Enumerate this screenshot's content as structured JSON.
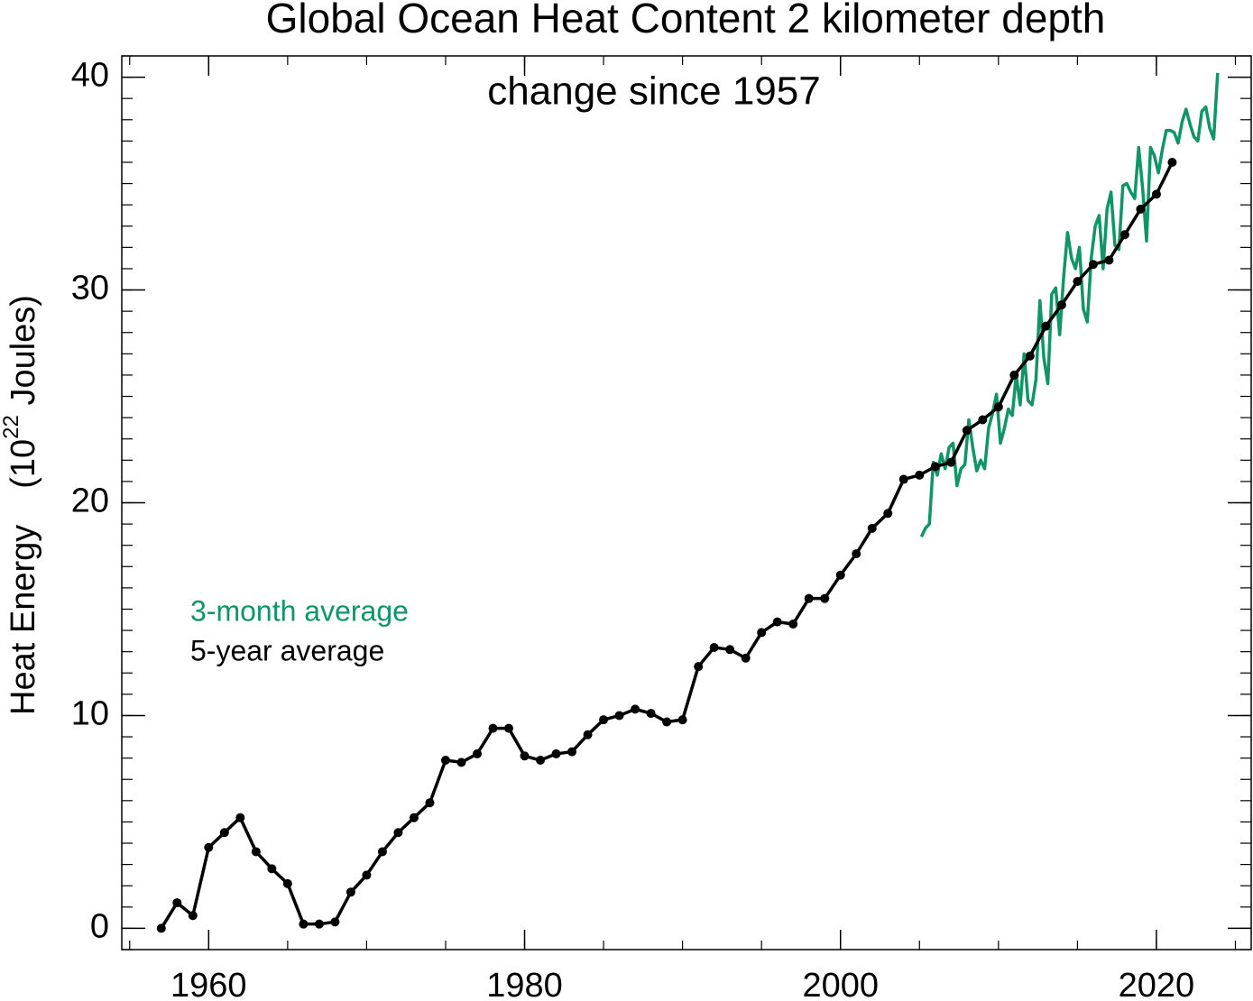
{
  "chart_data": {
    "type": "line",
    "title": "Global Ocean Heat Content   2 kilometer depth",
    "subtitle": "change since 1957",
    "ylabel": {
      "text": "Heat Energy",
      "unit_base": "(10",
      "unit_exp": "22",
      "unit_rest": " Joules)"
    },
    "xlim": [
      1954.5,
      2026
    ],
    "ylim": [
      -1,
      41
    ],
    "xticks": [
      1960,
      1980,
      2000,
      2020
    ],
    "yticks": [
      0,
      10,
      20,
      30,
      40
    ],
    "xminor": 5,
    "yminor": 1,
    "legend": "left",
    "series": [
      {
        "name": "3-month average",
        "color": "#109468",
        "markers": false,
        "x": [
          2005.125,
          2005.375,
          2005.625,
          2005.875,
          2006.125,
          2006.375,
          2006.625,
          2006.875,
          2007.125,
          2007.375,
          2007.625,
          2007.875,
          2008.125,
          2008.375,
          2008.625,
          2008.875,
          2009.125,
          2009.375,
          2009.625,
          2009.875,
          2010.125,
          2010.375,
          2010.625,
          2010.875,
          2011.125,
          2011.375,
          2011.625,
          2011.875,
          2012.125,
          2012.375,
          2012.625,
          2012.875,
          2013.125,
          2013.375,
          2013.625,
          2013.875,
          2014.125,
          2014.375,
          2014.625,
          2014.875,
          2015.125,
          2015.375,
          2015.625,
          2015.875,
          2016.125,
          2016.375,
          2016.625,
          2016.875,
          2017.125,
          2017.375,
          2017.625,
          2017.875,
          2018.125,
          2018.375,
          2018.625,
          2018.875,
          2019.125,
          2019.375,
          2019.625,
          2019.875,
          2020.125,
          2020.375,
          2020.625,
          2020.875,
          2021.125,
          2021.375,
          2021.625,
          2021.875,
          2022.125,
          2022.375,
          2022.625,
          2022.875,
          2023.125,
          2023.375,
          2023.625,
          2023.875
        ],
        "values": [
          18.4,
          18.8,
          19.0,
          21.9,
          21.3,
          22.3,
          21.6,
          22.6,
          22.8,
          20.8,
          21.6,
          21.8,
          23.9,
          22.6,
          21.5,
          22.0,
          21.6,
          23.5,
          24.2,
          25.1,
          22.8,
          23.5,
          24.4,
          24.1,
          26.0,
          24.6,
          27.0,
          24.8,
          24.6,
          25.8,
          29.5,
          26.8,
          25.6,
          29.8,
          30.1,
          27.9,
          30.6,
          32.7,
          31.5,
          31.0,
          32.0,
          29.1,
          28.5,
          31.5,
          33.0,
          33.5,
          31.0,
          33.8,
          34.6,
          32.1,
          31.9,
          34.9,
          35.0,
          34.6,
          34.3,
          36.7,
          34.8,
          32.3,
          36.7,
          36.3,
          35.5,
          36.6,
          37.5,
          37.5,
          37.4,
          36.9,
          37.9,
          38.5,
          37.8,
          37.2,
          37.0,
          38.4,
          38.6,
          37.6,
          37.1,
          40.2
        ]
      },
      {
        "name": "5-year average",
        "color": "#000000",
        "markers": true,
        "x": [
          1957,
          1958,
          1959,
          1960,
          1961,
          1962,
          1963,
          1964,
          1965,
          1966,
          1967,
          1968,
          1969,
          1970,
          1971,
          1972,
          1973,
          1974,
          1975,
          1976,
          1977,
          1978,
          1979,
          1980,
          1981,
          1982,
          1983,
          1984,
          1985,
          1986,
          1987,
          1988,
          1989,
          1990,
          1991,
          1992,
          1993,
          1994,
          1995,
          1996,
          1997,
          1998,
          1999,
          2000,
          2001,
          2002,
          2003,
          2004,
          2005,
          2006,
          2007,
          2008,
          2009,
          2010,
          2011,
          2012,
          2013,
          2014,
          2015,
          2016,
          2017,
          2018,
          2019,
          2020,
          2021
        ],
        "values": [
          0,
          1.2,
          0.6,
          3.8,
          4.5,
          5.2,
          3.6,
          2.8,
          2.1,
          0.2,
          0.2,
          0.3,
          1.7,
          2.5,
          3.6,
          4.5,
          5.2,
          5.9,
          7.9,
          7.8,
          8.2,
          9.4,
          9.4,
          8.1,
          7.9,
          8.2,
          8.3,
          9.1,
          9.8,
          10.0,
          10.3,
          10.1,
          9.7,
          9.8,
          12.3,
          13.2,
          13.1,
          12.7,
          13.9,
          14.4,
          14.3,
          15.5,
          15.5,
          16.6,
          17.6,
          18.8,
          19.5,
          21.1,
          21.3,
          21.7,
          21.9,
          23.4,
          23.9,
          24.5,
          26.0,
          26.9,
          28.3,
          29.3,
          30.4,
          31.2,
          31.4,
          32.6,
          33.8,
          34.5,
          36.0
        ]
      }
    ]
  }
}
